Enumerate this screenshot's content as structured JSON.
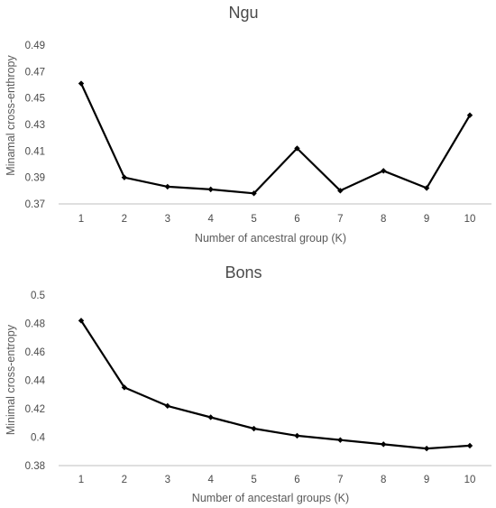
{
  "colors": {
    "line": "#000000",
    "axis": "#bfbfbf",
    "text": "#4a4a4a"
  },
  "chart_data": [
    {
      "type": "line",
      "title": "Ngu",
      "xlabel": "Number of ancestral group (K)",
      "ylabel": "Minamal cross-enthropy",
      "x": [
        1,
        2,
        3,
        4,
        5,
        6,
        7,
        8,
        9,
        10
      ],
      "values": [
        0.461,
        0.39,
        0.383,
        0.381,
        0.378,
        0.412,
        0.38,
        0.395,
        0.382,
        0.437
      ],
      "ylim": [
        0.37,
        0.49
      ],
      "yticks": [
        "0.37",
        "0.39",
        "0.41",
        "0.43",
        "0.45",
        "0.47",
        "0.49"
      ],
      "xticks": [
        "1",
        "2",
        "3",
        "4",
        "5",
        "6",
        "7",
        "8",
        "9",
        "10"
      ],
      "grid": false,
      "marker": "diamond"
    },
    {
      "type": "line",
      "title": "Bons",
      "xlabel": "Number of ancestarl groups (K)",
      "ylabel": "Minimal cross-entropy",
      "x": [
        1,
        2,
        3,
        4,
        5,
        6,
        7,
        8,
        9,
        10
      ],
      "values": [
        0.482,
        0.435,
        0.422,
        0.414,
        0.406,
        0.401,
        0.398,
        0.395,
        0.392,
        0.394
      ],
      "ylim": [
        0.38,
        0.5
      ],
      "yticks": [
        "0.38",
        "0.4",
        "0.42",
        "0.44",
        "0.46",
        "0.48",
        "0.5"
      ],
      "xticks": [
        "1",
        "2",
        "3",
        "4",
        "5",
        "6",
        "7",
        "8",
        "9",
        "10"
      ],
      "grid": false,
      "marker": "diamond"
    }
  ]
}
